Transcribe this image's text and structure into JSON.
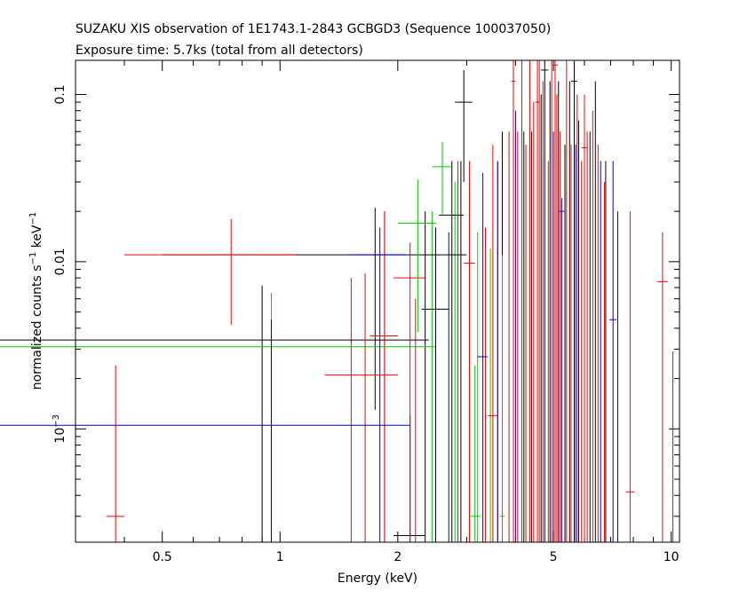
{
  "chart_data": {
    "type": "scatter",
    "title": "SUZAKU XIS observation of 1E1743.1-2843 GCBGD3 (Sequence 100037050)",
    "subtitle": "Exposure time: 5.7ks (total from all detectors)",
    "xlabel": "Energy (keV)",
    "ylabel_parts": {
      "main": "normalized counts s",
      "exp1": "−1",
      "mid": " keV",
      "exp2": "−1"
    },
    "xscale": "log",
    "yscale": "log",
    "xlim": [
      0.3,
      10.5
    ],
    "ylim": [
      0.00021,
      0.16
    ],
    "x_ticks": [
      {
        "value": 0.5,
        "label": "0.5"
      },
      {
        "value": 1,
        "label": "1"
      },
      {
        "value": 2,
        "label": "2"
      },
      {
        "value": 5,
        "label": "5"
      },
      {
        "value": 10,
        "label": "10"
      }
    ],
    "y_ticks": [
      {
        "value": 0.001,
        "base": "10",
        "exp": "−3"
      },
      {
        "value": 0.01,
        "label": "0.01"
      },
      {
        "value": 0.1,
        "label": "0.1"
      }
    ],
    "series": [
      {
        "color": "#000000",
        "points": [
          [
            0.9,
            1.5,
            0.0034,
            0.00021,
            0.0072
          ],
          [
            1.75,
            1.25,
            0.011,
            0.0013,
            0.021
          ],
          [
            2.15,
            0.2,
            0.00023,
            0.00021,
            0.0012
          ],
          [
            2.5,
            0.2,
            0.0052,
            0.00021,
            0.016
          ],
          [
            2.75,
            0.2,
            0.019,
            0.00021,
            0.04
          ],
          [
            2.95,
            0.15,
            0.09,
            0.03,
            0.14
          ],
          [
            4.75,
            0.1,
            0.14,
            0.00021,
            0.16
          ],
          [
            5.65,
            0.1,
            0.12,
            0.00021,
            0.16
          ]
        ]
      },
      {
        "color": "#ff0000",
        "points": [
          [
            0.38,
            0.02,
            0.0003,
            0.00021,
            0.0024
          ],
          [
            0.75,
            0.35,
            0.011,
            0.0042,
            0.018
          ],
          [
            1.65,
            0.35,
            0.0021,
            0.00021,
            0.0085
          ],
          [
            1.85,
            0.15,
            0.0036,
            0.00021,
            0.02
          ],
          [
            2.15,
            0.2,
            0.008,
            0.00021,
            0.013
          ],
          [
            3.05,
            0.1,
            0.0098,
            0.00021,
            0.04
          ],
          [
            3.5,
            0.1,
            0.0012,
            0.00021,
            0.05
          ],
          [
            3.95,
            0.05,
            0.12,
            0.00021,
            0.16
          ],
          [
            4.55,
            0.06,
            0.09,
            0.00021,
            0.16
          ],
          [
            5.05,
            0.08,
            0.15,
            0.00021,
            0.16
          ],
          [
            6.0,
            0.1,
            0.048,
            0.00021,
            0.1
          ],
          [
            7.85,
            0.2,
            0.00042,
            0.00021,
            0.02
          ],
          [
            9.5,
            0.3,
            0.0076,
            0.00021,
            0.015
          ],
          [
            10.1,
            0.05,
            0.0003,
            0.00021,
            0.0029
          ]
        ]
      },
      {
        "color": "#00cc00",
        "points": [
          [
            0.95,
            1.55,
            0.0031,
            0.00021,
            0.0065
          ],
          [
            2.25,
            0.25,
            0.017,
            0.0038,
            0.031
          ],
          [
            2.6,
            0.15,
            0.037,
            0.019,
            0.052
          ],
          [
            3.15,
            0.1,
            0.0003,
            0.00021,
            0.0024
          ],
          [
            3.7,
            0.05,
            0.0003,
            0.00021,
            0.011
          ]
        ]
      },
      {
        "color": "#0000cc",
        "points": [
          [
            0.95,
            1.2,
            0.00105,
            0.00021,
            0.0045
          ],
          [
            1.8,
            0.3,
            0.011,
            0.00021,
            0.016
          ],
          [
            3.3,
            0.1,
            0.0027,
            0.00021,
            0.034
          ],
          [
            5.25,
            0.08,
            0.02,
            0.00021,
            0.024
          ],
          [
            7.1,
            0.15,
            0.0045,
            0.00021,
            0.04
          ]
        ]
      }
    ],
    "extra_bars": [
      {
        "color": "#ff0000",
        "xs": [
          1.52,
          2.22,
          2.85,
          3.05,
          3.35,
          3.6,
          3.85,
          4.05,
          4.15,
          4.25,
          4.35,
          4.45,
          4.6,
          4.7,
          4.85,
          4.95,
          5.1,
          5.2,
          5.4,
          5.55,
          5.75,
          5.9,
          6.1,
          6.3,
          6.5,
          6.75
        ],
        "tops": [
          0.008,
          0.006,
          0.04,
          0.03,
          0.016,
          0.04,
          0.06,
          0.06,
          0.16,
          0.05,
          0.16,
          0.09,
          0.16,
          0.12,
          0.04,
          0.16,
          0.1,
          0.06,
          0.16,
          0.05,
          0.1,
          0.04,
          0.06,
          0.08,
          0.05,
          0.03
        ]
      },
      {
        "color": "#000000",
        "xs": [
          1.85,
          2.35,
          2.9,
          3.7,
          4.2,
          4.4,
          4.65,
          4.9,
          5.15,
          5.35,
          5.5,
          5.8,
          6.2,
          6.4,
          6.8
        ],
        "tops": [
          0.02,
          0.02,
          0.04,
          0.06,
          0.06,
          0.06,
          0.1,
          0.12,
          0.12,
          0.05,
          0.12,
          0.07,
          0.06,
          0.12,
          0.04
        ]
      },
      {
        "color": "#0000cc",
        "xs": [
          2.7,
          3.6,
          4.0,
          5.0,
          5.7,
          6.6,
          7.3
        ],
        "tops": [
          0.015,
          0.04,
          0.08,
          0.06,
          0.05,
          0.04,
          0.02
        ]
      },
      {
        "color": "#00cc00",
        "xs": [
          2.45,
          2.8,
          3.2,
          3.45
        ],
        "tops": [
          0.02,
          0.03,
          0.015,
          0.012
        ]
      }
    ]
  }
}
